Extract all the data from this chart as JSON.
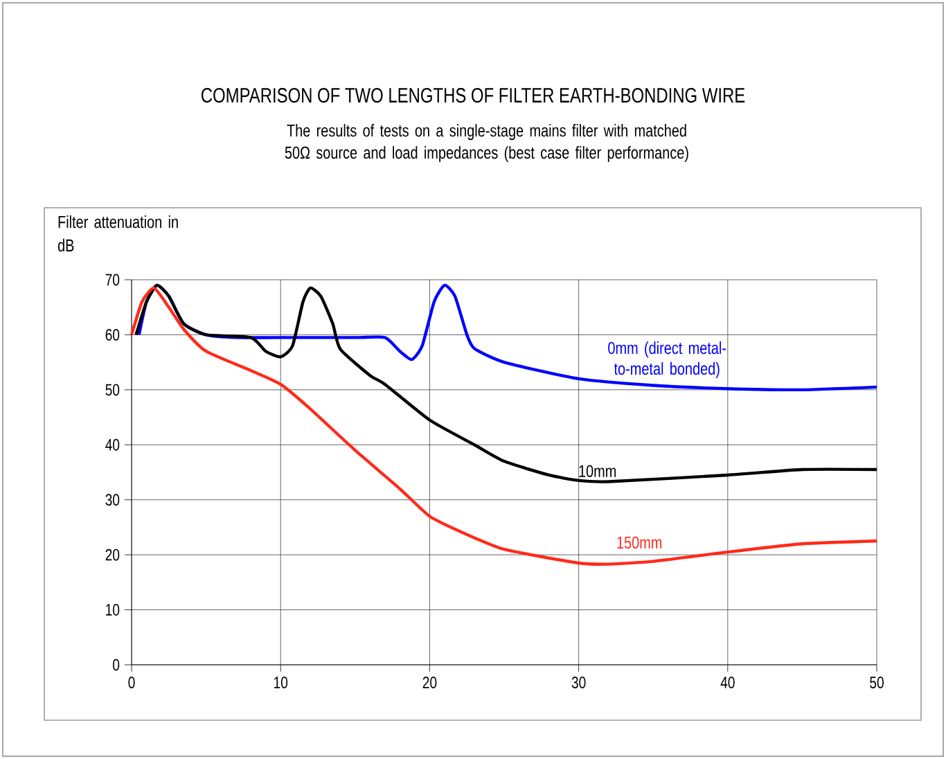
{
  "chart_data": {
    "type": "line",
    "title": "COMPARISON OF TWO LENGTHS OF FILTER EARTH-BONDING WIRE",
    "subtitle": "The results of tests on a single-stage mains filter with matched 50Ω source and load impedances (best case filter performance)",
    "ylabel": "Filter attenuation in dB",
    "xlim": [
      0,
      50
    ],
    "ylim": [
      0,
      70
    ],
    "xticks": [
      0,
      10,
      20,
      30,
      40,
      50
    ],
    "yticks": [
      0,
      10,
      20,
      30,
      40,
      50,
      60,
      70
    ],
    "grid": true,
    "legend": false,
    "marker": "none",
    "line_style": "solid",
    "series": [
      {
        "name": "0mm (direct metal-to-metal bonded)",
        "color": "#0000ff",
        "x": [
          0.5,
          1,
          1.7,
          2.5,
          3.5,
          5,
          7,
          10,
          15,
          17,
          18,
          18.8,
          19.5,
          20.3,
          21,
          21.7,
          22.5,
          23,
          25,
          30,
          35,
          40,
          45,
          50
        ],
        "values": [
          60,
          66,
          69,
          67,
          62,
          60,
          59.5,
          59.5,
          59.5,
          59.5,
          57,
          55.5,
          58,
          66,
          69,
          67,
          60,
          57.5,
          55,
          52,
          50.8,
          50.2,
          50,
          50.5
        ]
      },
      {
        "name": "10mm",
        "color": "#000000",
        "x": [
          0.3,
          1,
          1.7,
          2.5,
          3.5,
          5,
          8,
          9,
          10,
          10.8,
          11.5,
          12,
          12.7,
          13.5,
          14,
          16,
          17,
          20,
          23,
          25,
          28,
          30,
          32,
          40,
          45,
          50
        ],
        "values": [
          60,
          66,
          69,
          67,
          62,
          60,
          59.5,
          57,
          56,
          58,
          66,
          68.5,
          67,
          62,
          57.4,
          52.6,
          51,
          44.5,
          40,
          37,
          34.5,
          33.5,
          33.3,
          34.5,
          35.5,
          35.5
        ]
      },
      {
        "name": "150mm",
        "color": "#ff2a1a",
        "x": [
          0,
          0.7,
          1.5,
          2.5,
          3.5,
          5,
          8,
          10,
          12,
          15,
          18,
          20,
          22,
          25,
          30,
          32,
          35,
          40,
          45,
          50
        ],
        "values": [
          60,
          66,
          68.5,
          65,
          61,
          57,
          53.5,
          51,
          46.5,
          39,
          32,
          27,
          24.3,
          21,
          18.5,
          18.3,
          18.8,
          20.5,
          22,
          22.5
        ]
      }
    ]
  }
}
